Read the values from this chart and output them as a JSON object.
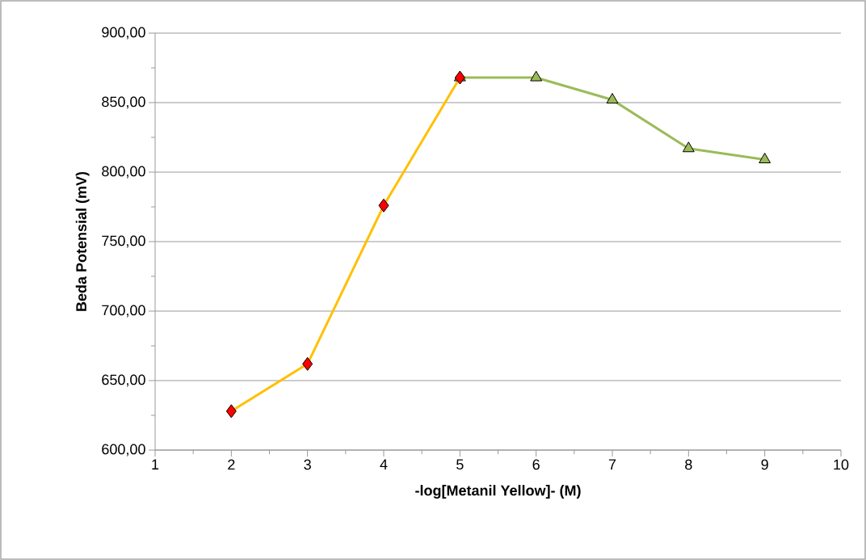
{
  "chart_data": {
    "type": "line",
    "xlabel": "-log[Metanil Yellow]- (M)",
    "ylabel": "Beda Potensial (mV)",
    "xlim": [
      1,
      10
    ],
    "xticks": [
      1,
      2,
      3,
      4,
      5,
      6,
      7,
      8,
      9,
      10
    ],
    "ylim": [
      600,
      900
    ],
    "yticks": [
      {
        "value": 600,
        "label": "600,00"
      },
      {
        "value": 650,
        "label": "650,00"
      },
      {
        "value": 700,
        "label": "700,00"
      },
      {
        "value": 750,
        "label": "750,00"
      },
      {
        "value": 800,
        "label": "800,00"
      },
      {
        "value": 850,
        "label": "850,00"
      },
      {
        "value": 900,
        "label": "900,00"
      }
    ],
    "grid": "y",
    "line_style": "solid",
    "series": [
      {
        "color": "#ffc000",
        "colors": [
          "#ff0000",
          "#ff0000",
          "#ff0000",
          "#ff0000"
        ],
        "marker": "diamond",
        "x": [
          2,
          3,
          4,
          5
        ],
        "values": [
          628,
          662,
          776,
          868
        ]
      },
      {
        "color": "#9bbb59",
        "marker": "triangle",
        "x": [
          5,
          6,
          7,
          8,
          9
        ],
        "values": [
          868,
          868,
          852,
          817,
          809
        ]
      }
    ]
  }
}
